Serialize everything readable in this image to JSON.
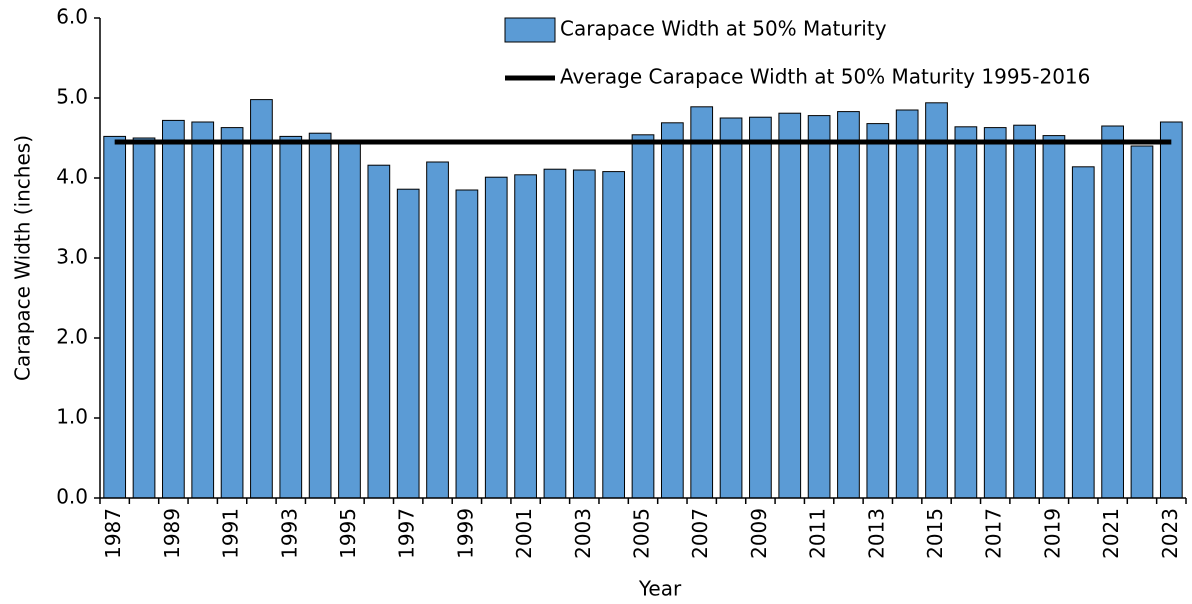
{
  "chart_data": {
    "type": "bar",
    "categories": [
      "1987",
      null,
      "1989",
      null,
      "1991",
      null,
      "1993",
      null,
      "1995",
      null,
      "1997",
      null,
      "1999",
      null,
      "2001",
      null,
      "2003",
      null,
      "2005",
      null,
      "2007",
      null,
      "2009",
      null,
      "2011",
      null,
      "2013",
      null,
      "2015",
      null,
      "2017",
      null,
      "2019",
      null,
      "2021",
      null,
      "2023"
    ],
    "series": [
      {
        "name": "Carapace Width at 50% Maturity",
        "type": "bar",
        "color": "#5b9bd5",
        "values": [
          4.52,
          4.5,
          4.72,
          4.7,
          4.63,
          4.98,
          4.52,
          4.56,
          4.44,
          4.16,
          3.86,
          4.2,
          3.85,
          4.01,
          4.04,
          4.11,
          4.1,
          4.08,
          4.54,
          4.69,
          4.89,
          4.75,
          4.76,
          4.81,
          4.78,
          4.83,
          4.68,
          4.85,
          4.94,
          4.64,
          4.63,
          4.66,
          4.53,
          4.14,
          4.65,
          4.4,
          4.7
        ]
      },
      {
        "name": "Average Carapace Width at 50% Maturity 1995-2016",
        "type": "line",
        "color": "#000000",
        "values": [
          4.45,
          4.45,
          4.45,
          4.45,
          4.45,
          4.45,
          4.45,
          4.45,
          4.45,
          4.45,
          4.45,
          4.45,
          4.45,
          4.45,
          4.45,
          4.45,
          4.45,
          4.45,
          4.45,
          4.45,
          4.45,
          4.45,
          4.45,
          4.45,
          4.45,
          4.45,
          4.45,
          4.45,
          4.45,
          4.45,
          4.45,
          4.45,
          4.45,
          4.45,
          4.45,
          4.45,
          4.45
        ]
      }
    ],
    "x_label": "Year",
    "y_label": "Carapace Width (inches)",
    "ylim": [
      0,
      6
    ],
    "yticks": [
      {
        "value": 0,
        "label": "0.0"
      },
      {
        "value": 1,
        "label": "1.0"
      },
      {
        "value": 2,
        "label": "2.0"
      },
      {
        "value": 3,
        "label": "3.0"
      },
      {
        "value": 4,
        "label": "4.0"
      },
      {
        "value": 5,
        "label": "5.0"
      },
      {
        "value": 6,
        "label": "6.0"
      }
    ],
    "grid": false,
    "legend": "top"
  }
}
